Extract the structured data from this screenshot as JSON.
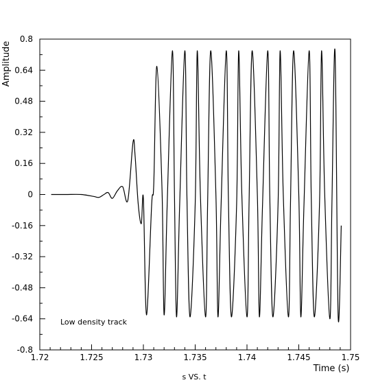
{
  "chart_data": {
    "type": "line",
    "xlabel": "Time (s)",
    "ylabel": "Amplitude",
    "caption": "s VS. t",
    "annotation": "Low density track",
    "xlim": [
      1.72,
      1.75
    ],
    "ylim": [
      -0.8,
      0.8
    ],
    "x_ticks": [
      1.72,
      1.725,
      1.73,
      1.735,
      1.74,
      1.745,
      1.75
    ],
    "x_tick_labels": [
      "1.72",
      "1.725",
      "1.73",
      "1.735",
      "1.74",
      "1.745",
      "1.75"
    ],
    "y_ticks": [
      0.8,
      0.64,
      0.48,
      0.32,
      0.16,
      0,
      -0.16,
      -0.32,
      -0.48,
      -0.64,
      -0.8
    ],
    "y_tick_labels": [
      "0.8",
      "0.64",
      "0.48",
      "0.32",
      "0.16",
      "0",
      "-0.16",
      "-0.32",
      "-0.48",
      "-0.64",
      "-0.8"
    ],
    "grid": false,
    "series": [
      {
        "x": [
          1.7211,
          1.7225,
          1.724,
          1.7252,
          1.7257,
          1.7262,
          1.7266,
          1.727,
          1.7275,
          1.728,
          1.7285,
          1.729,
          1.7292,
          1.7295,
          1.7298,
          1.73,
          1.7303,
          1.7308,
          1.731,
          1.7313,
          1.7318,
          1.732,
          1.7323,
          1.7328,
          1.733,
          1.7332,
          1.7335,
          1.734,
          1.7342,
          1.7345,
          1.735,
          1.7352,
          1.7355,
          1.736,
          1.7362,
          1.7365,
          1.737,
          1.7372,
          1.7375,
          1.738,
          1.7382,
          1.7385,
          1.739,
          1.7392,
          1.7395,
          1.74,
          1.7402,
          1.7405,
          1.741,
          1.7412,
          1.7415,
          1.742,
          1.7422,
          1.7425,
          1.743,
          1.7432,
          1.7435,
          1.744,
          1.7442,
          1.7445,
          1.745,
          1.7452,
          1.7455,
          1.746,
          1.7462,
          1.7465,
          1.747,
          1.7472,
          1.7475,
          1.748,
          1.7482,
          1.7485,
          1.7488,
          1.7491
        ],
        "y": [
          0.0,
          0.0,
          0.0,
          -0.01,
          -0.015,
          0.0,
          0.01,
          -0.02,
          0.02,
          0.04,
          -0.03,
          0.27,
          0.2,
          -0.05,
          -0.15,
          -0.02,
          -0.62,
          -0.05,
          0.05,
          0.66,
          0.02,
          -0.62,
          -0.05,
          0.74,
          0.0,
          -0.63,
          -0.05,
          0.74,
          0.0,
          -0.63,
          -0.05,
          0.74,
          0.0,
          -0.63,
          -0.05,
          0.74,
          0.0,
          -0.63,
          -0.05,
          0.74,
          0.0,
          -0.63,
          -0.05,
          0.74,
          0.0,
          -0.63,
          -0.05,
          0.74,
          0.0,
          -0.63,
          -0.05,
          0.74,
          0.0,
          -0.63,
          -0.05,
          0.74,
          0.0,
          -0.63,
          -0.05,
          0.74,
          0.0,
          -0.63,
          -0.05,
          0.74,
          0.0,
          -0.63,
          -0.05,
          0.74,
          0.0,
          -0.64,
          -0.05,
          0.74,
          -0.63,
          -0.16
        ]
      }
    ]
  }
}
